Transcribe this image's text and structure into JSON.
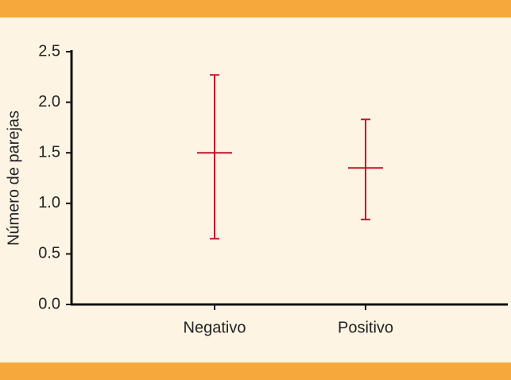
{
  "chart_data": {
    "type": "errorbar",
    "y_label": "Número de parejas",
    "categories": [
      "Negativo",
      "Positivo"
    ],
    "values": [
      1.5,
      1.35
    ],
    "lower": [
      0.65,
      0.84
    ],
    "upper": [
      2.27,
      1.83
    ],
    "color": "#c0142c",
    "ylim": [
      0,
      2.5
    ],
    "yticks": [
      {
        "value": 0,
        "label": "0.0"
      },
      {
        "value": 0.5,
        "label": "0.5"
      },
      {
        "value": 1,
        "label": "1.0"
      },
      {
        "value": 1.5,
        "label": "1.5"
      },
      {
        "value": 2,
        "label": "2.0"
      },
      {
        "value": 2.5,
        "label": "2.5"
      }
    ]
  }
}
